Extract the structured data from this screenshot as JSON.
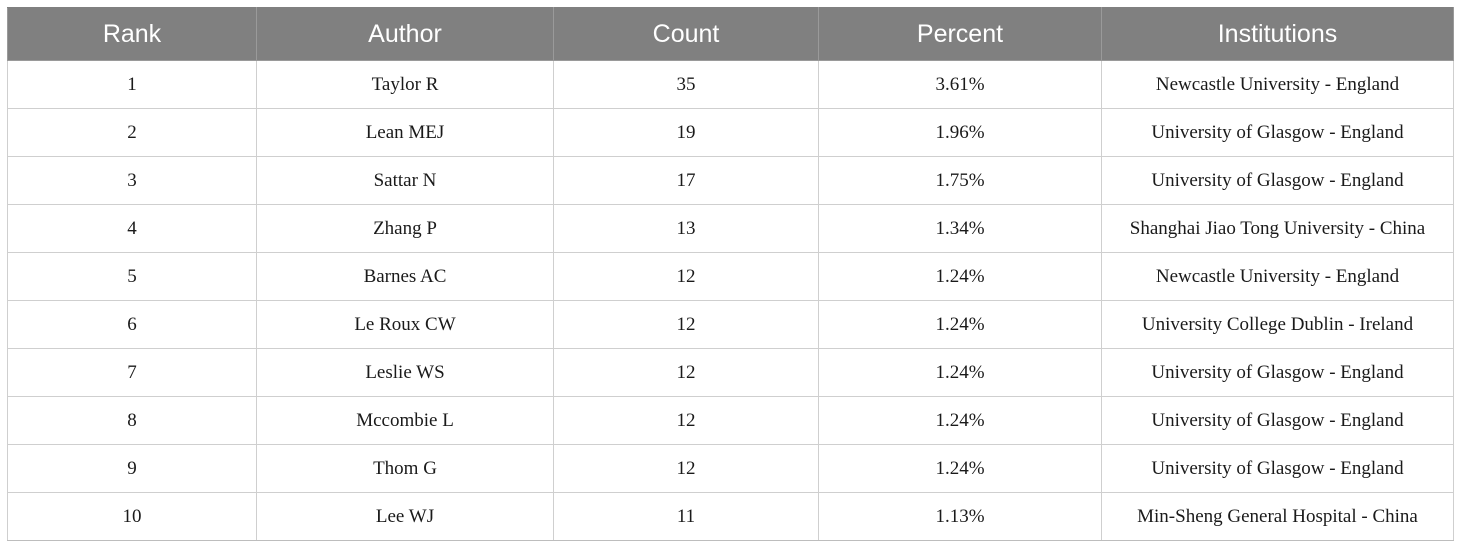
{
  "table": {
    "headers": [
      "Rank",
      "Author",
      "Count",
      "Percent",
      "Institutions"
    ],
    "rows": [
      [
        "1",
        "Taylor R",
        "35",
        "3.61%",
        "Newcastle University - England"
      ],
      [
        "2",
        "Lean MEJ",
        "19",
        "1.96%",
        "University of Glasgow - England"
      ],
      [
        "3",
        "Sattar N",
        "17",
        "1.75%",
        "University of Glasgow - England"
      ],
      [
        "4",
        "Zhang P",
        "13",
        "1.34%",
        "Shanghai Jiao Tong University - China"
      ],
      [
        "5",
        "Barnes AC",
        "12",
        "1.24%",
        "Newcastle University - England"
      ],
      [
        "6",
        "Le Roux CW",
        "12",
        "1.24%",
        "University College Dublin - Ireland"
      ],
      [
        "7",
        "Leslie WS",
        "12",
        "1.24%",
        "University of Glasgow - England"
      ],
      [
        "8",
        "Mccombie L",
        "12",
        "1.24%",
        "University of Glasgow - England"
      ],
      [
        "9",
        "Thom G",
        "12",
        "1.24%",
        "University of Glasgow - England"
      ],
      [
        "10",
        "Lee WJ",
        "11",
        "1.13%",
        "Min-Sheng General Hospital - China"
      ]
    ]
  },
  "colors": {
    "header_bg": "#808080",
    "header_text": "#ffffff",
    "grid": "#cfcfcf"
  }
}
